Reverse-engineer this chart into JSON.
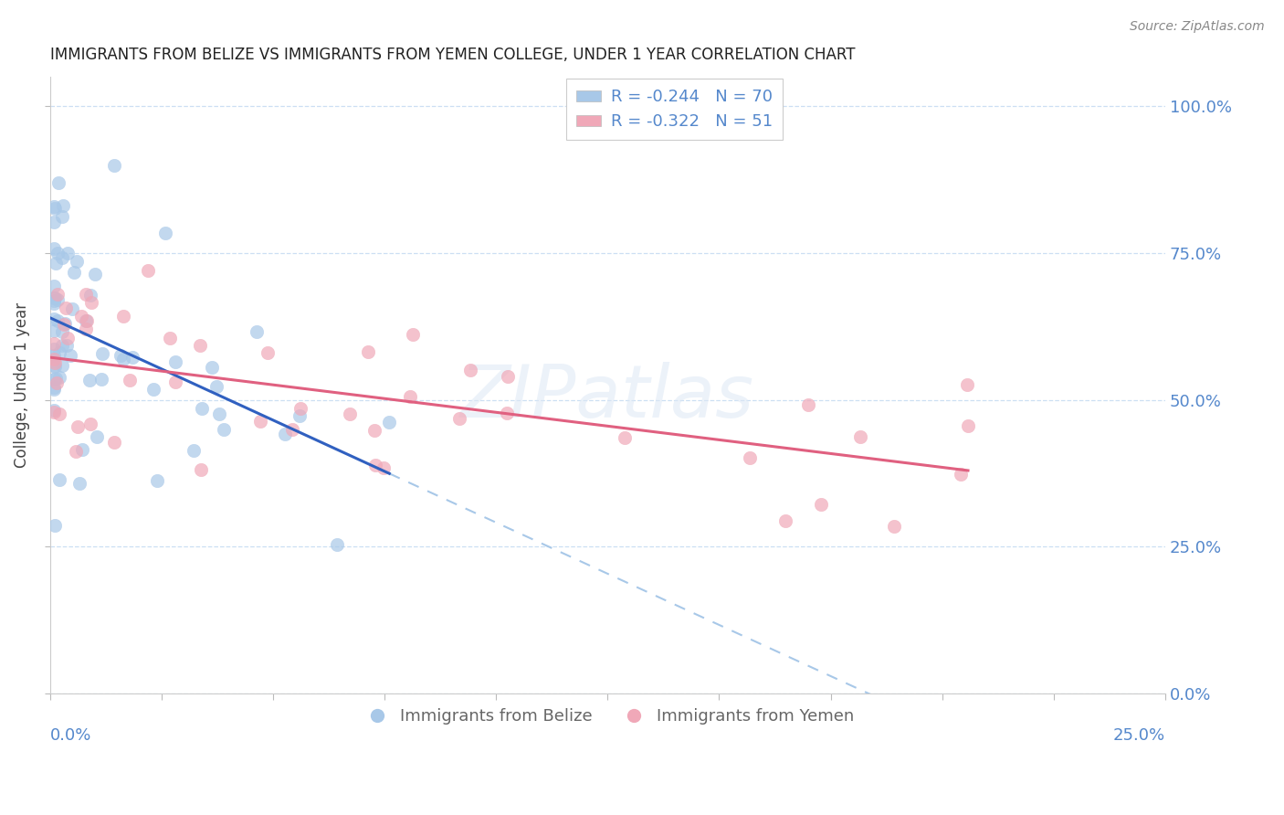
{
  "title": "IMMIGRANTS FROM BELIZE VS IMMIGRANTS FROM YEMEN COLLEGE, UNDER 1 YEAR CORRELATION CHART",
  "source": "Source: ZipAtlas.com",
  "ylabel": "College, Under 1 year",
  "xlim": [
    0.0,
    0.25
  ],
  "ylim": [
    0.0,
    1.05
  ],
  "belize_color": "#a8c8e8",
  "yemen_color": "#f0a8b8",
  "belize_line_color": "#3060c0",
  "yemen_line_color": "#e06080",
  "belize_dash_color": "#a8c8e8",
  "belize_R": -0.244,
  "belize_N": 70,
  "yemen_R": -0.322,
  "yemen_N": 51,
  "legend_label_belize": "Immigrants from Belize",
  "legend_label_yemen": "Immigrants from Yemen",
  "watermark": "ZIPatlas",
  "right_axis_color": "#5588cc",
  "grid_color": "#c0d8f0",
  "title_color": "#222222",
  "source_color": "#888888"
}
